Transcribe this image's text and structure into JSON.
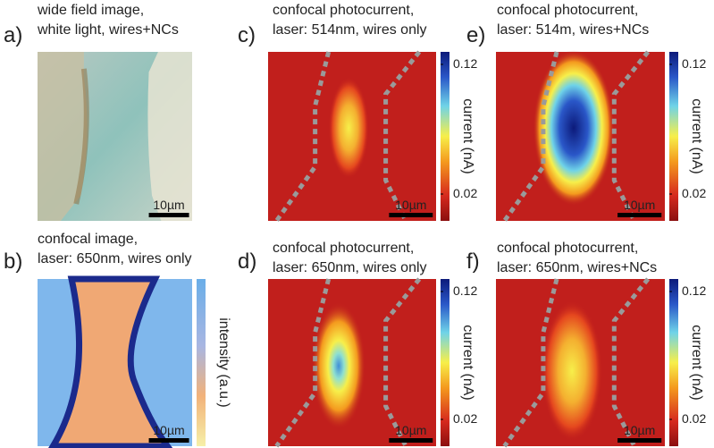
{
  "panels": [
    {
      "label": "a)",
      "title": [
        "wide field image,",
        "white light, wires+NCs"
      ],
      "scale_bar": "10µm"
    },
    {
      "label": "b)",
      "title": [
        "confocal image,",
        "laser: 650nm, wires only"
      ],
      "scale_bar": "10µm",
      "colorbar": {
        "label": "intensity (a.u.)"
      }
    },
    {
      "label": "c)",
      "title": [
        "confocal photocurrent,",
        "laser: 514nm, wires only"
      ],
      "scale_bar": "10µm",
      "colorbar": {
        "label": "current (nA)",
        "ticks": [
          "0.12",
          "0.02"
        ]
      }
    },
    {
      "label": "d)",
      "title": [
        "confocal photocurrent,",
        "laser: 650nm, wires only"
      ],
      "scale_bar": "10µm",
      "colorbar": {
        "label": "current (nA)",
        "ticks": [
          "0.12",
          "0.02"
        ]
      }
    },
    {
      "label": "e)",
      "title": [
        "confocal photocurrent,",
        "laser: 514m, wires+NCs"
      ],
      "scale_bar": "10µm",
      "colorbar": {
        "label": "current (nA)",
        "ticks": [
          "0.12",
          "0.02"
        ]
      }
    },
    {
      "label": "f)",
      "title": [
        "confocal photocurrent,",
        "laser: 650nm, wires+NCs"
      ],
      "scale_bar": "10µm",
      "colorbar": {
        "label": "current (nA)",
        "ticks": [
          "0.12",
          "0.02"
        ]
      }
    }
  ]
}
